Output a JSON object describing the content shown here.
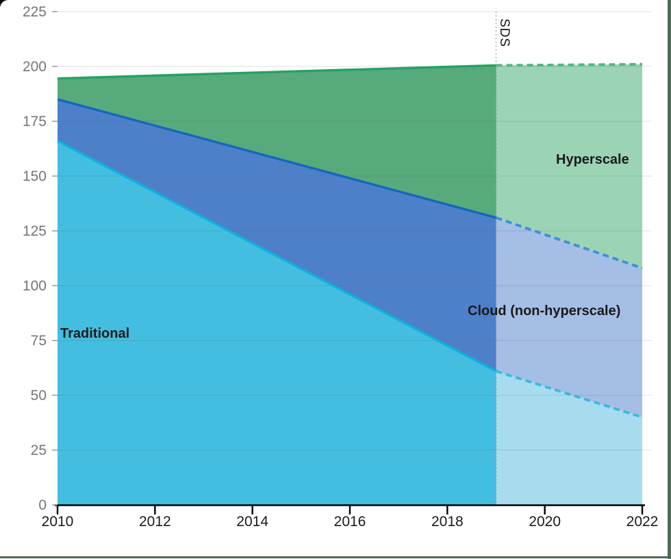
{
  "chart_data": {
    "type": "area",
    "stacked": true,
    "title": "",
    "xlabel": "",
    "ylabel": "",
    "x_points": [
      2010,
      2019,
      2022
    ],
    "forecast_from": 2019,
    "forecast_marker_label": "SDS",
    "x_ticks": [
      2010,
      2012,
      2014,
      2016,
      2018,
      2020,
      2022
    ],
    "y_ticks": [
      0,
      25,
      50,
      75,
      100,
      125,
      150,
      175,
      200,
      225
    ],
    "xlim": [
      2010,
      2022
    ],
    "ylim": [
      0,
      225
    ],
    "grid": true,
    "series": [
      {
        "name": "Traditional",
        "slug": "traditional",
        "cumulative_top": [
          166,
          61,
          40
        ],
        "band_values": [
          166,
          61,
          40
        ],
        "fill": "#44BEE0",
        "fill_forecast": "#A6DCEE",
        "line": "#0CB2DC",
        "line_forecast": "#38BADD"
      },
      {
        "name": "Cloud (non-hyperscale)",
        "slug": "cloud-non-hyperscale",
        "cumulative_top": [
          185,
          131,
          108
        ],
        "band_values": [
          19,
          70,
          68
        ],
        "fill": "#4E80C9",
        "fill_forecast": "#A5BEE5",
        "line": "#1566C0",
        "line_forecast": "#3F8EDA"
      },
      {
        "name": "Hyperscale",
        "slug": "hyperscale",
        "cumulative_top": [
          194.5,
          200.5,
          201
        ],
        "band_values": [
          9.5,
          69.5,
          93
        ],
        "fill": "#57AA7B",
        "fill_forecast": "#9AD4B5",
        "line": "#22A35F",
        "line_forecast": "#4FB787"
      }
    ],
    "axis": {
      "x_axis_color": "#000000",
      "x_label_color": "#1a1a1a",
      "y_label_color": "#757575",
      "y_tick_color": "#9a9a9a",
      "grid_color": "#e2e2e2",
      "marker_line_color": "#8a8a8a"
    }
  },
  "annotations": {
    "traditional_label": "Traditional",
    "cloud_label": "Cloud (non-hyperscale)",
    "hyperscale_label": "Hyperscale",
    "sds_label": "SDS"
  },
  "frame": {
    "border_color": "#4d6b56",
    "corner_color": "#000000",
    "background": "#ffffff"
  }
}
